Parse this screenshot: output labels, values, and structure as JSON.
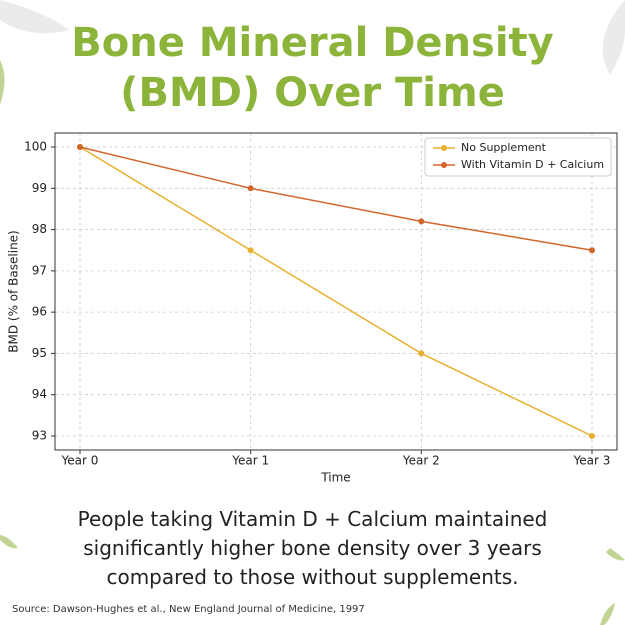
{
  "title": "Bone Mineral Density (BMD) Over Time",
  "chart_data": {
    "type": "line",
    "ylabel": "BMD (% of Baseline)",
    "xlabel": "Time",
    "categories": [
      "Year 0",
      "Year 1",
      "Year 2",
      "Year 3"
    ],
    "series": [
      {
        "name": "No Supplement",
        "color": "#e8b030",
        "values": [
          100,
          97.5,
          95,
          93
        ]
      },
      {
        "name": "With Vitamin D + Calcium",
        "color": "#d2662a",
        "values": [
          100,
          99,
          98.2,
          97.5
        ]
      }
    ],
    "ylim": [
      92.66,
      100.34
    ],
    "yticks": [
      93,
      94,
      95,
      96,
      97,
      98,
      99,
      100
    ],
    "grid": true,
    "legend": "upper right"
  },
  "caption": "People taking Vitamin D + Calcium maintained significantly higher bone density over 3 years compared to those without supplements.",
  "source": "Source: Dawson-Hughes et al., New England Journal of Medicine, 1997"
}
